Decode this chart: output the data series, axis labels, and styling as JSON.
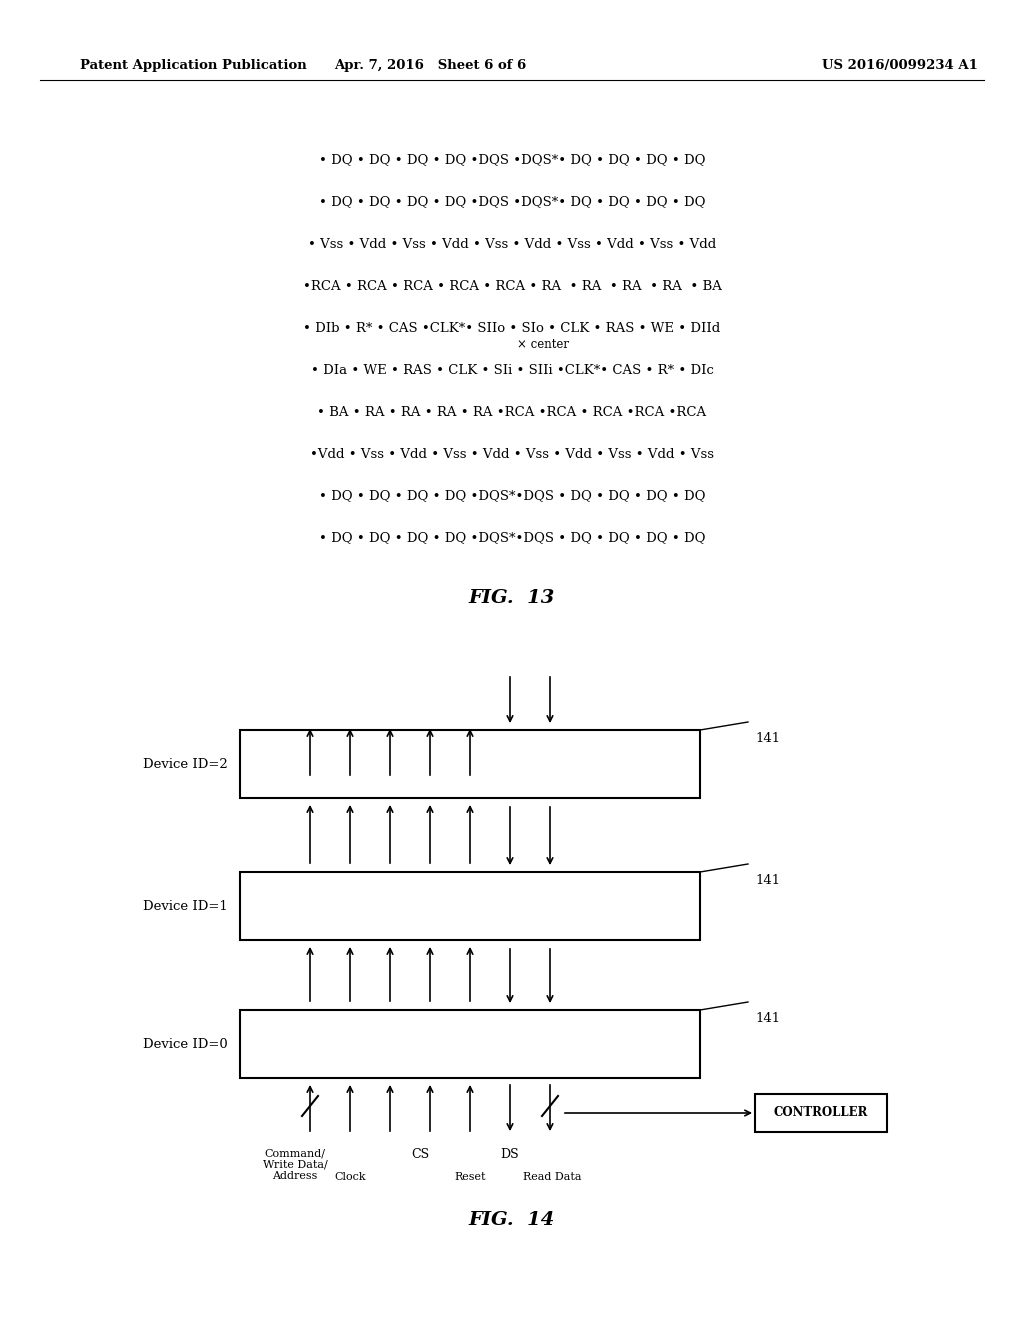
{
  "bg_color": "#ffffff",
  "header_left": "Patent Application Publication",
  "header_mid": "Apr. 7, 2016   Sheet 6 of 6",
  "header_right": "US 2016/0099234 A1",
  "fig13_lines": [
    "• DQ • DQ • DQ • DQ •DQS •DQS*• DQ • DQ • DQ • DQ",
    "• DQ • DQ • DQ • DQ •DQS •DQS*• DQ • DQ • DQ • DQ",
    "• Vss • Vdd • Vss • Vdd • Vss • Vdd • Vss • Vdd • Vss • Vdd",
    "•RCA • RCA • RCA • RCA • RCA • RA  • RA  • RA  • RA  • BA",
    "• DIb • R* • CAS •CLK*• SIIo • SIo • CLK • RAS • WE • DIId",
    "• DIa • WE • RAS • CLK • SIi • SIIi •CLK*• CAS • R* • DIc",
    "• BA • RA • RA • RA • RA •RCA •RCA • RCA •RCA •RCA",
    "•Vdd • Vss • Vdd • Vss • Vdd • Vss • Vdd • Vss • Vdd • Vss",
    "• DQ • DQ • DQ • DQ •DQS*•DQS • DQ • DQ • DQ • DQ",
    "• DQ • DQ • DQ • DQ •DQS*•DQS • DQ • DQ • DQ • DQ"
  ],
  "fig13_label": "FIG.  13",
  "fig14_label": "FIG.  14",
  "device_labels": [
    "Device ID=2",
    "Device ID=1",
    "Device ID=0"
  ],
  "label_141": "141",
  "controller_label": "CONTROLLER"
}
